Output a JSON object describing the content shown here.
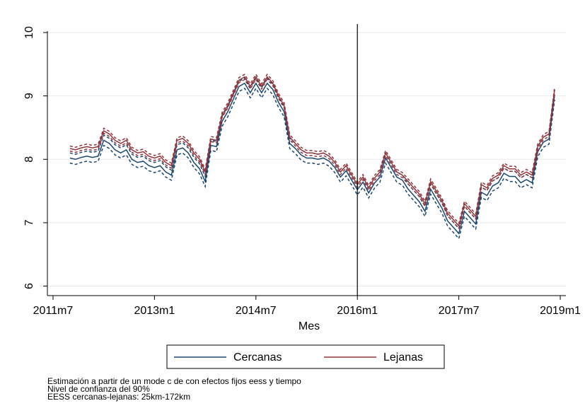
{
  "chart_data": {
    "type": "line",
    "x_label": "Mes",
    "x": [
      621,
      622,
      623,
      624,
      625,
      626,
      627,
      628,
      629,
      630,
      631,
      632,
      633,
      634,
      635,
      636,
      637,
      638,
      639,
      640,
      641,
      642,
      643,
      644,
      645,
      646,
      647,
      648,
      649,
      650,
      651,
      652,
      653,
      654,
      655,
      656,
      657,
      658,
      659,
      660,
      661,
      662,
      663,
      664,
      665,
      666,
      667,
      668,
      669,
      670,
      671,
      672,
      673,
      674,
      675,
      676,
      677,
      678,
      679,
      680,
      681,
      682,
      683,
      684,
      685,
      686,
      687,
      688,
      689,
      690,
      691,
      692,
      693,
      694,
      695,
      696,
      697,
      698,
      699,
      700,
      701,
      702,
      703,
      704,
      705,
      706,
      707
    ],
    "series": [
      {
        "name": "Cercanas",
        "color": "#1a476f",
        "values": [
          8.02,
          8.0,
          8.03,
          8.05,
          8.03,
          8.05,
          8.3,
          8.25,
          8.15,
          8.1,
          8.15,
          8.0,
          7.95,
          7.97,
          7.9,
          7.87,
          7.9,
          7.8,
          7.75,
          8.15,
          8.18,
          8.1,
          7.95,
          7.85,
          7.65,
          8.22,
          8.2,
          8.6,
          8.75,
          8.95,
          9.15,
          9.2,
          9.05,
          9.2,
          9.05,
          9.2,
          9.1,
          8.9,
          8.75,
          8.25,
          8.17,
          8.07,
          8.02,
          8.02,
          8.0,
          8.02,
          7.97,
          7.87,
          7.72,
          7.82,
          7.67,
          7.52,
          7.64,
          7.47,
          7.62,
          7.72,
          8.02,
          7.87,
          7.72,
          7.67,
          7.53,
          7.43,
          7.33,
          7.18,
          7.53,
          7.38,
          7.23,
          7.03,
          6.93,
          6.83,
          7.18,
          7.08,
          6.98,
          7.48,
          7.43,
          7.58,
          7.63,
          7.78,
          7.73,
          7.73,
          7.63,
          7.68,
          7.63,
          8.12,
          8.27,
          8.32,
          9.02
        ],
        "lower": [
          7.94,
          7.92,
          7.95,
          7.97,
          7.95,
          7.97,
          8.22,
          8.17,
          8.07,
          8.02,
          8.07,
          7.92,
          7.87,
          7.89,
          7.82,
          7.79,
          7.82,
          7.72,
          7.67,
          8.07,
          8.1,
          8.02,
          7.87,
          7.77,
          7.57,
          8.14,
          8.12,
          8.52,
          8.67,
          8.87,
          9.07,
          9.12,
          8.97,
          9.12,
          8.97,
          9.12,
          9.02,
          8.82,
          8.67,
          8.17,
          8.09,
          7.99,
          7.94,
          7.94,
          7.92,
          7.94,
          7.89,
          7.79,
          7.64,
          7.74,
          7.59,
          7.44,
          7.56,
          7.39,
          7.54,
          7.64,
          7.94,
          7.79,
          7.64,
          7.59,
          7.45,
          7.35,
          7.25,
          7.1,
          7.45,
          7.3,
          7.15,
          6.95,
          6.85,
          6.75,
          7.1,
          7.0,
          6.9,
          7.4,
          7.35,
          7.5,
          7.55,
          7.7,
          7.65,
          7.65,
          7.55,
          7.6,
          7.55,
          8.04,
          8.19,
          8.24,
          8.94
        ],
        "upper": [
          8.1,
          8.08,
          8.11,
          8.13,
          8.11,
          8.13,
          8.38,
          8.33,
          8.23,
          8.18,
          8.23,
          8.08,
          8.03,
          8.05,
          7.98,
          7.95,
          7.98,
          7.88,
          7.83,
          8.23,
          8.26,
          8.18,
          8.03,
          7.93,
          7.73,
          8.3,
          8.28,
          8.68,
          8.83,
          9.03,
          9.23,
          9.28,
          9.13,
          9.28,
          9.13,
          9.28,
          9.18,
          8.98,
          8.83,
          8.33,
          8.25,
          8.15,
          8.1,
          8.1,
          8.08,
          8.1,
          8.05,
          7.95,
          7.8,
          7.9,
          7.75,
          7.6,
          7.72,
          7.55,
          7.7,
          7.8,
          8.1,
          7.95,
          7.8,
          7.75,
          7.61,
          7.51,
          7.41,
          7.26,
          7.61,
          7.46,
          7.31,
          7.11,
          7.01,
          6.91,
          7.26,
          7.16,
          7.06,
          7.56,
          7.51,
          7.66,
          7.71,
          7.86,
          7.81,
          7.81,
          7.71,
          7.76,
          7.71,
          8.2,
          8.35,
          8.4,
          9.1
        ]
      },
      {
        "name": "Lejanas",
        "color": "#90353b",
        "values": [
          8.17,
          8.15,
          8.18,
          8.2,
          8.18,
          8.2,
          8.45,
          8.4,
          8.3,
          8.25,
          8.3,
          8.15,
          8.1,
          8.12,
          8.05,
          8.02,
          8.05,
          7.95,
          7.9,
          8.3,
          8.33,
          8.25,
          8.1,
          8.0,
          7.8,
          8.32,
          8.3,
          8.7,
          8.85,
          9.05,
          9.25,
          9.3,
          9.15,
          9.3,
          9.15,
          9.3,
          9.2,
          9.0,
          8.85,
          8.35,
          8.25,
          8.15,
          8.1,
          8.1,
          8.08,
          8.1,
          8.05,
          7.95,
          7.8,
          7.9,
          7.75,
          7.6,
          7.72,
          7.55,
          7.7,
          7.8,
          8.1,
          7.95,
          7.8,
          7.75,
          7.65,
          7.55,
          7.45,
          7.3,
          7.65,
          7.5,
          7.35,
          7.15,
          7.05,
          6.95,
          7.3,
          7.2,
          7.1,
          7.6,
          7.55,
          7.7,
          7.75,
          7.9,
          7.85,
          7.85,
          7.75,
          7.8,
          7.75,
          8.2,
          8.35,
          8.4,
          9.1
        ],
        "lower": [
          8.13,
          8.11,
          8.14,
          8.16,
          8.14,
          8.16,
          8.41,
          8.36,
          8.26,
          8.21,
          8.26,
          8.11,
          8.06,
          8.08,
          8.01,
          7.98,
          8.01,
          7.91,
          7.86,
          8.26,
          8.29,
          8.21,
          8.06,
          7.96,
          7.76,
          8.28,
          8.26,
          8.66,
          8.81,
          9.01,
          9.21,
          9.26,
          9.11,
          9.26,
          9.11,
          9.26,
          9.16,
          8.96,
          8.81,
          8.31,
          8.21,
          8.11,
          8.06,
          8.06,
          8.04,
          8.06,
          8.01,
          7.91,
          7.76,
          7.86,
          7.71,
          7.56,
          7.68,
          7.51,
          7.66,
          7.76,
          8.06,
          7.91,
          7.76,
          7.71,
          7.61,
          7.51,
          7.41,
          7.26,
          7.61,
          7.46,
          7.31,
          7.11,
          7.01,
          6.91,
          7.26,
          7.16,
          7.06,
          7.56,
          7.51,
          7.66,
          7.71,
          7.86,
          7.81,
          7.81,
          7.71,
          7.76,
          7.71,
          8.16,
          8.31,
          8.36,
          9.06
        ],
        "upper": [
          8.21,
          8.19,
          8.22,
          8.24,
          8.22,
          8.24,
          8.49,
          8.44,
          8.34,
          8.29,
          8.34,
          8.19,
          8.14,
          8.16,
          8.09,
          8.06,
          8.09,
          7.99,
          7.94,
          8.34,
          8.37,
          8.29,
          8.14,
          8.04,
          7.84,
          8.36,
          8.34,
          8.74,
          8.89,
          9.09,
          9.29,
          9.34,
          9.19,
          9.34,
          9.19,
          9.34,
          9.24,
          9.04,
          8.89,
          8.39,
          8.29,
          8.19,
          8.14,
          8.14,
          8.12,
          8.14,
          8.09,
          7.99,
          7.84,
          7.94,
          7.79,
          7.64,
          7.76,
          7.59,
          7.74,
          7.84,
          8.14,
          7.99,
          7.84,
          7.79,
          7.69,
          7.59,
          7.49,
          7.34,
          7.69,
          7.54,
          7.39,
          7.19,
          7.09,
          6.99,
          7.34,
          7.24,
          7.14,
          7.64,
          7.59,
          7.74,
          7.79,
          7.94,
          7.89,
          7.89,
          7.79,
          7.84,
          7.79,
          8.24,
          8.39,
          8.44,
          9.14
        ]
      }
    ],
    "xlim": [
      617,
      709
    ],
    "xticks": [
      {
        "value": 618,
        "label": "2011m7"
      },
      {
        "value": 636,
        "label": "2013m1"
      },
      {
        "value": 654,
        "label": "2014m7"
      },
      {
        "value": 672,
        "label": "2016m1"
      },
      {
        "value": 690,
        "label": "2017m7"
      },
      {
        "value": 708,
        "label": "2019m1"
      }
    ],
    "xline": 672,
    "ylim": [
      5.85,
      10
    ],
    "yticks": [
      6,
      7,
      8,
      9,
      10
    ],
    "grid": true,
    "legend": "bottom",
    "notes": [
      "Estimación a partir de un mode c de con efectos fijos eess y tiempo",
      "Nivel de confianza del 90%",
      "EESS cercanas-lejanas: 25km-172km"
    ]
  }
}
